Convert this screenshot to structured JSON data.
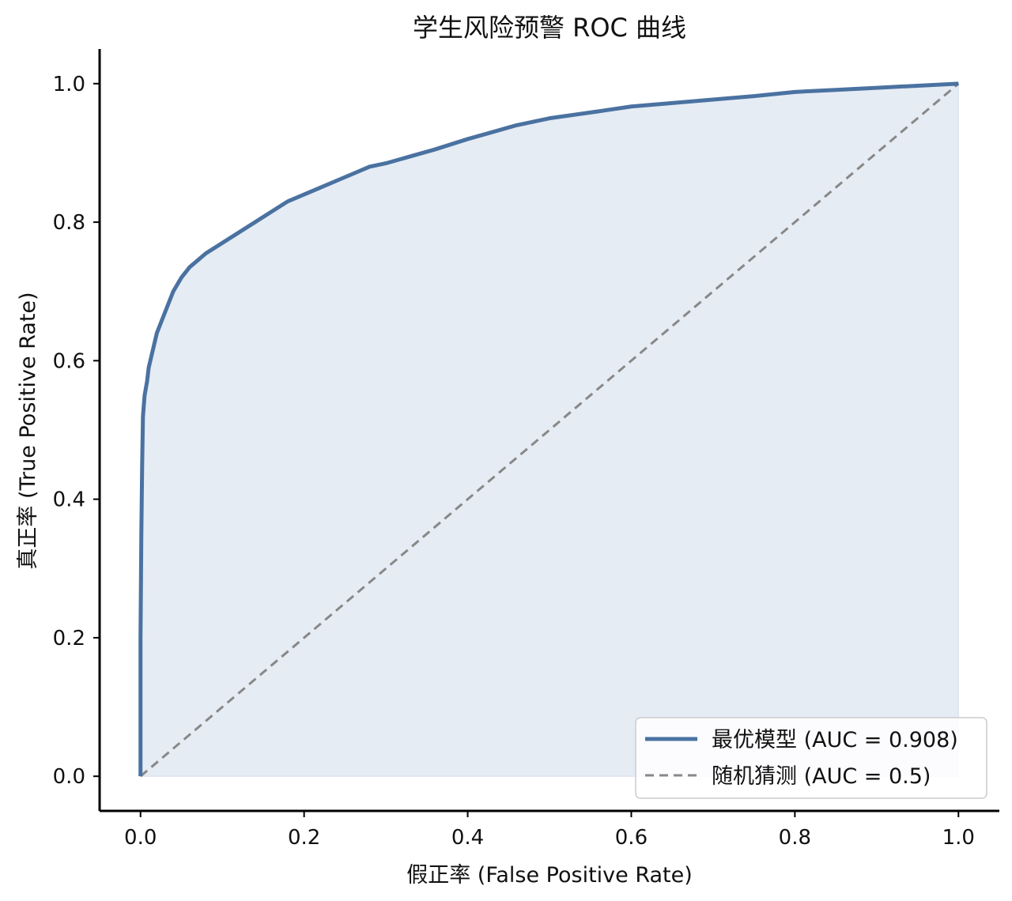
{
  "chart_data": {
    "type": "line",
    "title": "学生风险预警 ROC 曲线",
    "xlabel": "假正率 (False Positive Rate)",
    "ylabel": "真正率 (True Positive Rate)",
    "xlim": [
      -0.05,
      1.05
    ],
    "ylim": [
      -0.05,
      1.05
    ],
    "x_ticks": [
      "0.0",
      "0.2",
      "0.4",
      "0.6",
      "0.8",
      "1.0"
    ],
    "y_ticks": [
      "0.0",
      "0.2",
      "0.4",
      "0.6",
      "0.8",
      "1.0"
    ],
    "grid": false,
    "legend_position": "lower-right",
    "series": [
      {
        "name": "最优模型 (AUC = 0.908)",
        "color": "#4a72a1",
        "style": "solid",
        "fill_under": true,
        "fill_color": "#e6ecf4",
        "x": [
          0.0,
          0.0,
          0.001,
          0.002,
          0.003,
          0.005,
          0.008,
          0.01,
          0.015,
          0.02,
          0.03,
          0.04,
          0.05,
          0.06,
          0.07,
          0.08,
          0.1,
          0.12,
          0.14,
          0.16,
          0.18,
          0.2,
          0.22,
          0.24,
          0.26,
          0.28,
          0.3,
          0.33,
          0.36,
          0.4,
          0.43,
          0.46,
          0.5,
          0.53,
          0.56,
          0.6,
          0.65,
          0.7,
          0.75,
          0.8,
          0.85,
          0.9,
          0.95,
          1.0
        ],
        "y": [
          0.0,
          0.2,
          0.35,
          0.45,
          0.52,
          0.55,
          0.57,
          0.59,
          0.615,
          0.64,
          0.67,
          0.7,
          0.72,
          0.735,
          0.745,
          0.755,
          0.77,
          0.785,
          0.8,
          0.815,
          0.83,
          0.84,
          0.85,
          0.86,
          0.87,
          0.88,
          0.885,
          0.895,
          0.905,
          0.92,
          0.93,
          0.94,
          0.95,
          0.955,
          0.96,
          0.967,
          0.972,
          0.977,
          0.982,
          0.988,
          0.991,
          0.994,
          0.997,
          1.0
        ]
      },
      {
        "name": "随机猜测 (AUC = 0.5)",
        "color": "#888888",
        "style": "dashed",
        "fill_under": false,
        "x": [
          0.0,
          1.0
        ],
        "y": [
          0.0,
          1.0
        ]
      }
    ]
  }
}
